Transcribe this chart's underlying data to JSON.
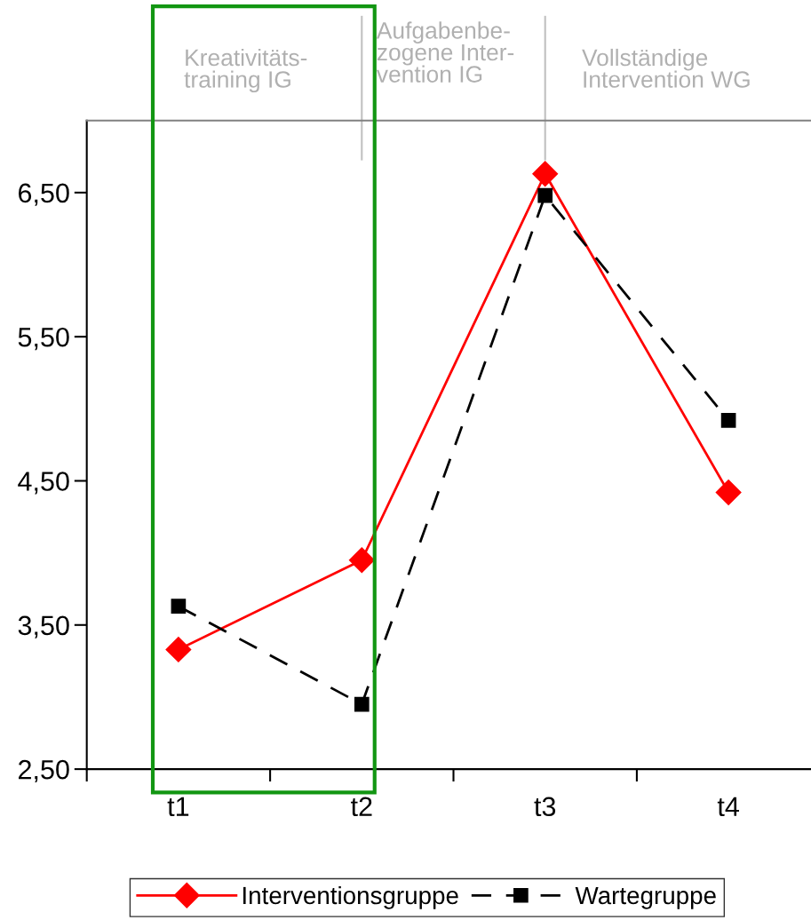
{
  "chart_data": {
    "type": "line",
    "categories": [
      "t1",
      "t2",
      "t3",
      "t4"
    ],
    "series": [
      {
        "name": "Interventionsgruppe",
        "color": "#ff0000",
        "values": [
          3.33,
          3.95,
          6.63,
          4.42
        ],
        "marker": "diamond",
        "line_style": "solid"
      },
      {
        "name": "Wartegruppe",
        "color": "#000000",
        "values": [
          3.63,
          2.95,
          6.48,
          4.92
        ],
        "marker": "square",
        "line_style": "dashed"
      }
    ],
    "ylim": [
      2.5,
      7.0
    ],
    "yticks": [
      {
        "value": 2.5,
        "label": "2,50"
      },
      {
        "value": 3.5,
        "label": "3,50"
      },
      {
        "value": 4.5,
        "label": "4,50"
      },
      {
        "value": 5.5,
        "label": "5,50"
      },
      {
        "value": 6.5,
        "label": "6,50"
      }
    ],
    "annotations": [
      "Kreativitäts-\ntraining IG",
      "Aufgabenbe-\nzogene Inter-\nvention IG",
      "Vollständige\nIntervention WG"
    ],
    "grid": false,
    "legend": "bottom"
  }
}
